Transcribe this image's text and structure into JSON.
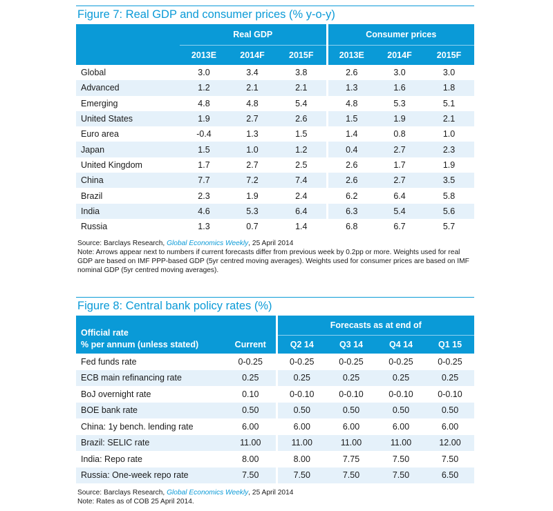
{
  "fig7": {
    "title": "Figure 7: Real GDP and consumer prices (% y-o-y)",
    "group_real": "Real GDP",
    "group_cp": "Consumer prices",
    "years": [
      "2013E",
      "2014F",
      "2015F",
      "2013E",
      "2014F",
      "2015F"
    ],
    "rows": [
      {
        "label": "Global",
        "v": [
          "3.0",
          "3.4",
          "3.8",
          "2.6",
          "3.0",
          "3.0"
        ]
      },
      {
        "label": "Advanced",
        "v": [
          "1.2",
          "2.1",
          "2.1",
          "1.3",
          "1.6",
          "1.8"
        ]
      },
      {
        "label": "Emerging",
        "v": [
          "4.8",
          "4.8",
          "5.4",
          "4.8",
          "5.3",
          "5.1"
        ]
      },
      {
        "label": "United States",
        "v": [
          "1.9",
          "2.7",
          "2.6",
          "1.5",
          "1.9",
          "2.1"
        ]
      },
      {
        "label": "Euro area",
        "v": [
          "-0.4",
          "1.3",
          "1.5",
          "1.4",
          "0.8",
          "1.0"
        ]
      },
      {
        "label": "Japan",
        "v": [
          "1.5",
          "1.0",
          "1.2",
          "0.4",
          "2.7",
          "2.3"
        ]
      },
      {
        "label": "United Kingdom",
        "v": [
          "1.7",
          "2.7",
          "2.5",
          "2.6",
          "1.7",
          "1.9"
        ]
      },
      {
        "label": "China",
        "v": [
          "7.7",
          "7.2",
          "7.4",
          "2.6",
          "2.7",
          "3.5"
        ]
      },
      {
        "label": "Brazil",
        "v": [
          "2.3",
          "1.9",
          "2.4",
          "6.2",
          "6.4",
          "5.8"
        ]
      },
      {
        "label": "India",
        "v": [
          "4.6",
          "5.3",
          "6.4",
          "6.3",
          "5.4",
          "5.6"
        ]
      },
      {
        "label": "Russia",
        "v": [
          "1.3",
          "0.7",
          "1.4",
          "6.8",
          "6.7",
          "5.7"
        ]
      }
    ],
    "source_prefix": "Source: Barclays Research, ",
    "source_pub": "Global Economics Weekly",
    "source_date": ", 25 April 2014",
    "note": "Note: Arrows appear next to numbers if current forecasts differ from previous week by 0.2pp or more. Weights used for real GDP are based on IMF PPP-based GDP (5yr centred moving averages). Weights used for consumer prices are based on IMF nominal GDP (5yr centred moving averages)."
  },
  "fig8": {
    "title": "Figure 8: Central bank policy rates (%)",
    "header_label_1": "Official rate",
    "header_label_2": "% per annum (unless stated)",
    "group_forecast": "Forecasts as at end of",
    "cols": [
      "Current",
      "Q2 14",
      "Q3 14",
      "Q4 14",
      "Q1 15"
    ],
    "rows": [
      {
        "label": "Fed funds rate",
        "v": [
          "0-0.25",
          "0-0.25",
          "0-0.25",
          "0-0.25",
          "0-0.25"
        ]
      },
      {
        "label": "ECB main refinancing rate",
        "v": [
          "0.25",
          "0.25",
          "0.25",
          "0.25",
          "0.25"
        ]
      },
      {
        "label": "BoJ overnight rate",
        "v": [
          "0.10",
          "0-0.10",
          "0-0.10",
          "0-0.10",
          "0-0.10"
        ]
      },
      {
        "label": "BOE bank rate",
        "v": [
          "0.50",
          "0.50",
          "0.50",
          "0.50",
          "0.50"
        ]
      },
      {
        "label": "China: 1y bench. lending rate",
        "v": [
          "6.00",
          "6.00",
          "6.00",
          "6.00",
          "6.00"
        ]
      },
      {
        "label": "Brazil: SELIC rate",
        "v": [
          "11.00",
          "11.00",
          "11.00",
          "11.00",
          "12.00"
        ]
      },
      {
        "label": "India: Repo rate",
        "v": [
          "8.00",
          "8.00",
          "7.75",
          "7.50",
          "7.50"
        ]
      },
      {
        "label": "Russia: One-week repo rate",
        "v": [
          "7.50",
          "7.50",
          "7.50",
          "7.50",
          "6.50"
        ]
      }
    ],
    "source_prefix": "Source: Barclays Research, ",
    "source_pub": "Global Economics Weekly",
    "source_date": ", 25 April 2014",
    "note": "Note: Rates as of COB 25 April 2014."
  }
}
